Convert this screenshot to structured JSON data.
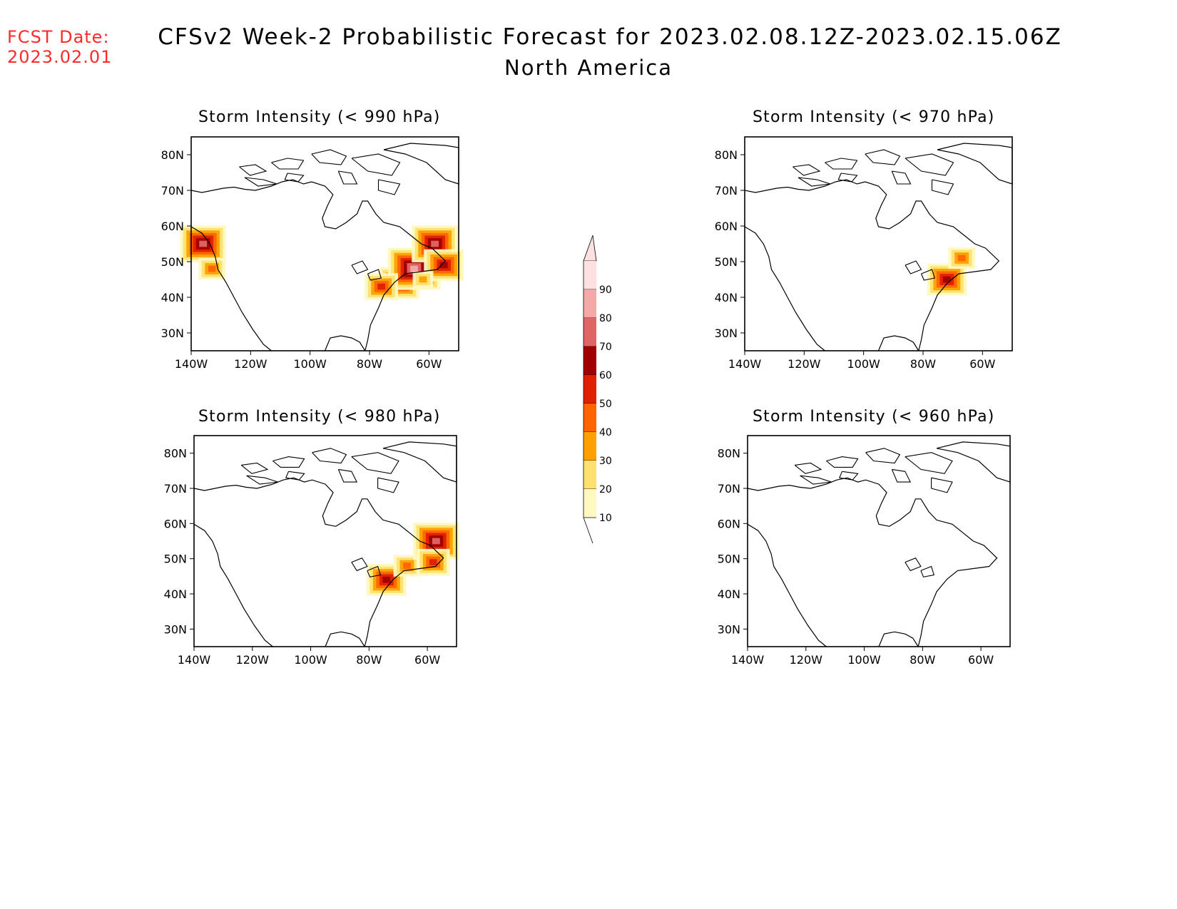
{
  "header": {
    "fcst_label": "FCST Date:",
    "fcst_date": "2023.02.01",
    "title": "CFSv2 Week-2 Probabilistic Forecast for 2023.02.08.12Z-2023.02.15.06Z",
    "subtitle": "North America"
  },
  "axes": {
    "lat_labels": [
      "80N",
      "70N",
      "60N",
      "50N",
      "40N",
      "30N"
    ],
    "lon_labels": [
      "140W",
      "120W",
      "100W",
      "80W",
      "60W"
    ]
  },
  "panels": [
    {
      "id": "p990",
      "title": "Storm Intensity (< 990 hPa)"
    },
    {
      "id": "p970",
      "title": "Storm Intensity (< 970 hPa)"
    },
    {
      "id": "p980",
      "title": "Storm Intensity (< 980 hPa)"
    },
    {
      "id": "p960",
      "title": "Storm Intensity (< 960 hPa)"
    }
  ],
  "colorbar": {
    "labels": [
      "90",
      "80",
      "70",
      "60",
      "50",
      "40",
      "30",
      "20",
      "10"
    ],
    "colors": [
      "#fde0e0",
      "#f4a8a8",
      "#e06666",
      "#a00000",
      "#e02000",
      "#ff6400",
      "#ffa000",
      "#fde070",
      "#fff8c0"
    ]
  }
}
